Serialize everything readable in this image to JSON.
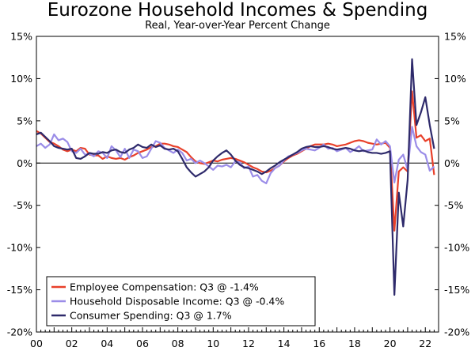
{
  "chart_data": {
    "type": "line",
    "title": "Eurozone Household Incomes & Spending",
    "subtitle": "Real, Year-over-Year Percent Change",
    "xlabel": "",
    "ylabel": "",
    "x_range": [
      2000,
      2022.75
    ],
    "x_ticks": [
      2000,
      2002,
      2004,
      2006,
      2008,
      2010,
      2012,
      2014,
      2016,
      2018,
      2020,
      2022
    ],
    "x_tick_labels": [
      "00",
      "02",
      "04",
      "06",
      "08",
      "10",
      "12",
      "14",
      "16",
      "18",
      "20",
      "22"
    ],
    "ylim": [
      -20,
      15
    ],
    "y_ticks": [
      -20,
      -15,
      -10,
      -5,
      0,
      5,
      10,
      15
    ],
    "y_tick_labels": [
      "-20%",
      "-15%",
      "-10%",
      "-5%",
      "0%",
      "5%",
      "10%",
      "15%"
    ],
    "grid": false,
    "zero_line": true,
    "legend_position": "bottom-left",
    "series": [
      {
        "name": "Employee Compensation: Q3 @ -1.4%",
        "color": "#e8402a",
        "points": [
          [
            2000,
            3.8
          ],
          [
            2000.25,
            3.5
          ],
          [
            2000.5,
            3.0
          ],
          [
            2000.75,
            2.5
          ],
          [
            2001,
            2.3
          ],
          [
            2001.25,
            2.0
          ],
          [
            2001.5,
            1.6
          ],
          [
            2001.75,
            1.4
          ],
          [
            2002,
            1.6
          ],
          [
            2002.25,
            1.4
          ],
          [
            2002.5,
            1.8
          ],
          [
            2002.75,
            1.7
          ],
          [
            2003,
            1.0
          ],
          [
            2003.25,
            0.9
          ],
          [
            2003.5,
            0.9
          ],
          [
            2003.75,
            0.5
          ],
          [
            2004,
            0.8
          ],
          [
            2004.25,
            0.6
          ],
          [
            2004.5,
            0.5
          ],
          [
            2004.75,
            0.6
          ],
          [
            2005,
            0.4
          ],
          [
            2005.25,
            0.7
          ],
          [
            2005.5,
            0.9
          ],
          [
            2005.75,
            1.2
          ],
          [
            2006,
            1.4
          ],
          [
            2006.25,
            1.6
          ],
          [
            2006.5,
            1.9
          ],
          [
            2006.75,
            2.0
          ],
          [
            2007,
            2.3
          ],
          [
            2007.25,
            2.3
          ],
          [
            2007.5,
            2.2
          ],
          [
            2007.75,
            2.0
          ],
          [
            2008,
            1.9
          ],
          [
            2008.25,
            1.6
          ],
          [
            2008.5,
            1.3
          ],
          [
            2008.75,
            0.7
          ],
          [
            2009,
            0.2
          ],
          [
            2009.25,
            0.0
          ],
          [
            2009.5,
            -0.1
          ],
          [
            2009.75,
            0.1
          ],
          [
            2010,
            0.3
          ],
          [
            2010.25,
            0.2
          ],
          [
            2010.5,
            0.4
          ],
          [
            2010.75,
            0.5
          ],
          [
            2011,
            0.6
          ],
          [
            2011.25,
            0.5
          ],
          [
            2011.5,
            0.3
          ],
          [
            2011.75,
            0.1
          ],
          [
            2012,
            -0.2
          ],
          [
            2012.25,
            -0.5
          ],
          [
            2012.5,
            -0.7
          ],
          [
            2012.75,
            -1.0
          ],
          [
            2013,
            -1.1
          ],
          [
            2013.25,
            -0.9
          ],
          [
            2013.5,
            -0.6
          ],
          [
            2013.75,
            -0.3
          ],
          [
            2014,
            0.2
          ],
          [
            2014.25,
            0.6
          ],
          [
            2014.5,
            0.9
          ],
          [
            2014.75,
            1.1
          ],
          [
            2015,
            1.4
          ],
          [
            2015.25,
            1.7
          ],
          [
            2015.5,
            2.0
          ],
          [
            2015.75,
            2.2
          ],
          [
            2016,
            2.2
          ],
          [
            2016.25,
            2.2
          ],
          [
            2016.5,
            2.3
          ],
          [
            2016.75,
            2.2
          ],
          [
            2017,
            2.0
          ],
          [
            2017.25,
            2.1
          ],
          [
            2017.5,
            2.2
          ],
          [
            2017.75,
            2.4
          ],
          [
            2018,
            2.6
          ],
          [
            2018.25,
            2.7
          ],
          [
            2018.5,
            2.6
          ],
          [
            2018.75,
            2.4
          ],
          [
            2019,
            2.3
          ],
          [
            2019.25,
            2.2
          ],
          [
            2019.5,
            2.3
          ],
          [
            2019.75,
            2.4
          ],
          [
            2020,
            1.8
          ],
          [
            2020.25,
            -8.0
          ],
          [
            2020.5,
            -1.0
          ],
          [
            2020.75,
            -0.5
          ],
          [
            2021,
            -1.0
          ],
          [
            2021.25,
            8.5
          ],
          [
            2021.5,
            3.0
          ],
          [
            2021.75,
            3.3
          ],
          [
            2022,
            2.6
          ],
          [
            2022.25,
            2.9
          ],
          [
            2022.5,
            -1.4
          ]
        ]
      },
      {
        "name": "Household Disposable Income: Q3 @ -0.4%",
        "color": "#9b8de8",
        "points": [
          [
            2000,
            2.0
          ],
          [
            2000.25,
            2.3
          ],
          [
            2000.5,
            1.8
          ],
          [
            2000.75,
            2.2
          ],
          [
            2001,
            3.4
          ],
          [
            2001.25,
            2.7
          ],
          [
            2001.5,
            2.9
          ],
          [
            2001.75,
            2.5
          ],
          [
            2002,
            1.4
          ],
          [
            2002.25,
            1.2
          ],
          [
            2002.5,
            1.7
          ],
          [
            2002.75,
            1.0
          ],
          [
            2003,
            1.1
          ],
          [
            2003.25,
            0.8
          ],
          [
            2003.5,
            1.4
          ],
          [
            2003.75,
            1.2
          ],
          [
            2004,
            0.6
          ],
          [
            2004.25,
            2.0
          ],
          [
            2004.5,
            1.5
          ],
          [
            2004.75,
            0.7
          ],
          [
            2005,
            1.7
          ],
          [
            2005.25,
            0.6
          ],
          [
            2005.5,
            1.6
          ],
          [
            2005.75,
            1.4
          ],
          [
            2006,
            0.6
          ],
          [
            2006.25,
            0.8
          ],
          [
            2006.5,
            1.7
          ],
          [
            2006.75,
            2.6
          ],
          [
            2007,
            2.4
          ],
          [
            2007.25,
            1.8
          ],
          [
            2007.5,
            1.5
          ],
          [
            2007.75,
            1.2
          ],
          [
            2008,
            1.6
          ],
          [
            2008.25,
            1.2
          ],
          [
            2008.5,
            0.3
          ],
          [
            2008.75,
            0.5
          ],
          [
            2009,
            0.0
          ],
          [
            2009.25,
            0.3
          ],
          [
            2009.5,
            0.0
          ],
          [
            2009.75,
            -0.4
          ],
          [
            2010,
            -0.8
          ],
          [
            2010.25,
            -0.3
          ],
          [
            2010.5,
            -0.4
          ],
          [
            2010.75,
            -0.2
          ],
          [
            2011,
            -0.5
          ],
          [
            2011.25,
            0.2
          ],
          [
            2011.5,
            0.1
          ],
          [
            2011.75,
            -0.6
          ],
          [
            2012,
            -0.4
          ],
          [
            2012.25,
            -1.6
          ],
          [
            2012.5,
            -1.4
          ],
          [
            2012.75,
            -2.1
          ],
          [
            2013,
            -2.4
          ],
          [
            2013.25,
            -1.2
          ],
          [
            2013.5,
            -0.6
          ],
          [
            2013.75,
            -0.3
          ],
          [
            2014,
            0.3
          ],
          [
            2014.25,
            0.8
          ],
          [
            2014.5,
            1.0
          ],
          [
            2014.75,
            1.2
          ],
          [
            2015,
            1.5
          ],
          [
            2015.25,
            1.7
          ],
          [
            2015.5,
            1.6
          ],
          [
            2015.75,
            1.5
          ],
          [
            2016,
            1.8
          ],
          [
            2016.25,
            2.2
          ],
          [
            2016.5,
            1.7
          ],
          [
            2016.75,
            1.8
          ],
          [
            2017,
            1.4
          ],
          [
            2017.25,
            1.6
          ],
          [
            2017.5,
            1.8
          ],
          [
            2017.75,
            1.3
          ],
          [
            2018,
            1.6
          ],
          [
            2018.25,
            2.0
          ],
          [
            2018.5,
            1.4
          ],
          [
            2018.75,
            1.5
          ],
          [
            2019,
            1.6
          ],
          [
            2019.25,
            2.8
          ],
          [
            2019.5,
            2.2
          ],
          [
            2019.75,
            2.6
          ],
          [
            2020,
            2.0
          ],
          [
            2020.25,
            -2.3
          ],
          [
            2020.5,
            0.4
          ],
          [
            2020.75,
            1.0
          ],
          [
            2021,
            -0.8
          ],
          [
            2021.25,
            4.3
          ],
          [
            2021.5,
            2.0
          ],
          [
            2021.75,
            1.3
          ],
          [
            2022,
            1.0
          ],
          [
            2022.25,
            -0.9
          ],
          [
            2022.5,
            -0.4
          ]
        ]
      },
      {
        "name": "Consumer Spending: Q3 @ 1.7%",
        "color": "#2e2a6b",
        "points": [
          [
            2000,
            3.4
          ],
          [
            2000.25,
            3.6
          ],
          [
            2000.5,
            3.1
          ],
          [
            2000.75,
            2.6
          ],
          [
            2001,
            2.0
          ],
          [
            2001.25,
            1.8
          ],
          [
            2001.5,
            1.7
          ],
          [
            2001.75,
            1.6
          ],
          [
            2002,
            1.7
          ],
          [
            2002.25,
            0.6
          ],
          [
            2002.5,
            0.5
          ],
          [
            2002.75,
            0.8
          ],
          [
            2003,
            1.2
          ],
          [
            2003.25,
            1.1
          ],
          [
            2003.5,
            1.1
          ],
          [
            2003.75,
            1.3
          ],
          [
            2004,
            1.2
          ],
          [
            2004.25,
            1.5
          ],
          [
            2004.5,
            1.6
          ],
          [
            2004.75,
            1.3
          ],
          [
            2005,
            1.2
          ],
          [
            2005.25,
            1.6
          ],
          [
            2005.5,
            1.8
          ],
          [
            2005.75,
            2.2
          ],
          [
            2006,
            1.9
          ],
          [
            2006.25,
            1.8
          ],
          [
            2006.5,
            2.2
          ],
          [
            2006.75,
            1.9
          ],
          [
            2007,
            2.1
          ],
          [
            2007.25,
            1.7
          ],
          [
            2007.5,
            1.6
          ],
          [
            2007.75,
            1.7
          ],
          [
            2008,
            1.4
          ],
          [
            2008.25,
            0.5
          ],
          [
            2008.5,
            -0.5
          ],
          [
            2008.75,
            -1.1
          ],
          [
            2009,
            -1.6
          ],
          [
            2009.25,
            -1.3
          ],
          [
            2009.5,
            -1.0
          ],
          [
            2009.75,
            -0.5
          ],
          [
            2010,
            0.3
          ],
          [
            2010.25,
            0.8
          ],
          [
            2010.5,
            1.2
          ],
          [
            2010.75,
            1.5
          ],
          [
            2011,
            1.0
          ],
          [
            2011.25,
            0.3
          ],
          [
            2011.5,
            -0.2
          ],
          [
            2011.75,
            -0.5
          ],
          [
            2012,
            -0.6
          ],
          [
            2012.25,
            -0.8
          ],
          [
            2012.5,
            -1.0
          ],
          [
            2012.75,
            -1.3
          ],
          [
            2013,
            -1.0
          ],
          [
            2013.25,
            -0.6
          ],
          [
            2013.5,
            -0.3
          ],
          [
            2013.75,
            0.1
          ],
          [
            2014,
            0.4
          ],
          [
            2014.25,
            0.7
          ],
          [
            2014.5,
            1.0
          ],
          [
            2014.75,
            1.3
          ],
          [
            2015,
            1.7
          ],
          [
            2015.25,
            1.9
          ],
          [
            2015.5,
            2.0
          ],
          [
            2015.75,
            1.9
          ],
          [
            2016,
            1.9
          ],
          [
            2016.25,
            2.0
          ],
          [
            2016.5,
            1.9
          ],
          [
            2016.75,
            1.7
          ],
          [
            2017,
            1.6
          ],
          [
            2017.25,
            1.7
          ],
          [
            2017.5,
            1.8
          ],
          [
            2017.75,
            1.7
          ],
          [
            2018,
            1.5
          ],
          [
            2018.25,
            1.4
          ],
          [
            2018.5,
            1.5
          ],
          [
            2018.75,
            1.3
          ],
          [
            2019,
            1.2
          ],
          [
            2019.25,
            1.2
          ],
          [
            2019.5,
            1.1
          ],
          [
            2019.75,
            1.2
          ],
          [
            2020,
            1.4
          ],
          [
            2020.25,
            -15.6
          ],
          [
            2020.5,
            -3.5
          ],
          [
            2020.75,
            -7.5
          ],
          [
            2021,
            -2.0
          ],
          [
            2021.25,
            12.3
          ],
          [
            2021.5,
            4.5
          ],
          [
            2021.75,
            6.0
          ],
          [
            2022,
            7.8
          ],
          [
            2022.25,
            4.5
          ],
          [
            2022.5,
            1.7
          ]
        ]
      }
    ]
  }
}
